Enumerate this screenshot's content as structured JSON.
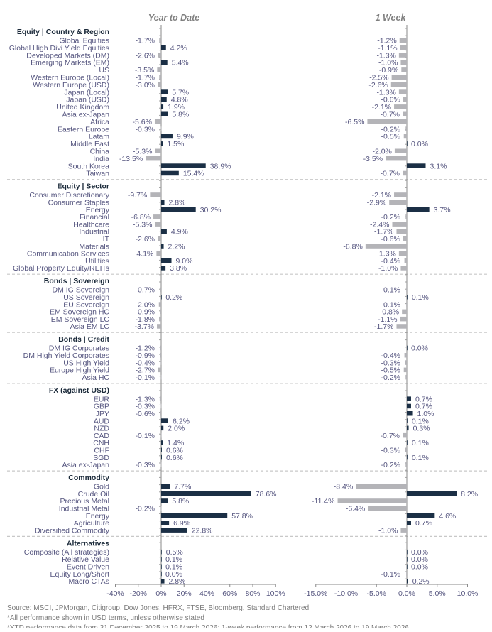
{
  "chart_data": {
    "type": "bar",
    "orientation": "horizontal",
    "panels": [
      {
        "title": "Year to Date",
        "key": "ytd",
        "xlim": [
          -40,
          100
        ],
        "ticks": [
          -40,
          -20,
          0,
          20,
          40,
          60,
          80,
          100
        ],
        "tick_format": "%d%"
      },
      {
        "title": "1 Week",
        "key": "w1",
        "xlim": [
          -15,
          10
        ],
        "ticks": [
          -15,
          -10,
          -5,
          0,
          5,
          10
        ],
        "tick_format": "%.1f%"
      }
    ],
    "colors": {
      "positive": "#1b2f45",
      "negative": "#b4b4b8",
      "text": "#55557f",
      "header": "#1b2a3a"
    },
    "sections": [
      {
        "title": "Equity | Country & Region",
        "items": [
          {
            "label": "Global Equities",
            "ytd": -1.7,
            "w1": -1.2
          },
          {
            "label": "Global High Divi Yield Equities",
            "ytd": 4.2,
            "w1": -1.1
          },
          {
            "label": "Developed Markets (DM)",
            "ytd": -2.6,
            "w1": -1.3
          },
          {
            "label": "Emerging Markets (EM)",
            "ytd": 5.4,
            "w1": -1.0
          },
          {
            "label": "US",
            "ytd": -3.5,
            "w1": -0.9
          },
          {
            "label": "Western Europe (Local)",
            "ytd": -1.7,
            "w1": -2.5
          },
          {
            "label": "Western Europe (USD)",
            "ytd": -3.0,
            "w1": -2.6
          },
          {
            "label": "Japan (Local)",
            "ytd": 5.7,
            "w1": -1.3
          },
          {
            "label": "Japan (USD)",
            "ytd": 4.8,
            "w1": -0.6
          },
          {
            "label": "United Kingdom",
            "ytd": 1.9,
            "w1": -2.1
          },
          {
            "label": "Asia ex-Japan",
            "ytd": 5.8,
            "w1": -0.7
          },
          {
            "label": "Africa",
            "ytd": -5.6,
            "w1": -6.5
          },
          {
            "label": "Eastern Europe",
            "ytd": -0.3,
            "w1": -0.2
          },
          {
            "label": "Latam",
            "ytd": 9.9,
            "w1": -0.5
          },
          {
            "label": "Middle East",
            "ytd": 1.5,
            "w1": 0.0
          },
          {
            "label": "China",
            "ytd": -5.3,
            "w1": -2.0
          },
          {
            "label": "India",
            "ytd": -13.5,
            "w1": -3.5
          },
          {
            "label": "South Korea",
            "ytd": 38.9,
            "w1": 3.1
          },
          {
            "label": "Taiwan",
            "ytd": 15.4,
            "w1": -0.7
          }
        ]
      },
      {
        "title": "Equity | Sector",
        "items": [
          {
            "label": "Consumer Discretionary",
            "ytd": -9.7,
            "w1": -2.1
          },
          {
            "label": "Consumer Staples",
            "ytd": 2.8,
            "w1": -2.9
          },
          {
            "label": "Energy",
            "ytd": 30.2,
            "w1": 3.7
          },
          {
            "label": "Financial",
            "ytd": -6.8,
            "w1": -0.2
          },
          {
            "label": "Healthcare",
            "ytd": -5.3,
            "w1": -2.4
          },
          {
            "label": "Industrial",
            "ytd": 4.9,
            "w1": -1.7
          },
          {
            "label": "IT",
            "ytd": -2.6,
            "w1": -0.6
          },
          {
            "label": "Materials",
            "ytd": 2.2,
            "w1": -6.8
          },
          {
            "label": "Communication Services",
            "ytd": -4.1,
            "w1": -1.3
          },
          {
            "label": "Utilities",
            "ytd": 9.0,
            "w1": -0.4
          },
          {
            "label": "Global Property Equity/REITs",
            "ytd": 3.8,
            "w1": -1.0
          }
        ]
      },
      {
        "title": "Bonds | Sovereign",
        "items": [
          {
            "label": "DM IG Sovereign",
            "ytd": -0.7,
            "w1": -0.1
          },
          {
            "label": "US Sovereign",
            "ytd": 0.2,
            "w1": 0.1
          },
          {
            "label": "EU Sovereign",
            "ytd": -2.0,
            "w1": -0.1
          },
          {
            "label": "EM Sovereign HC",
            "ytd": -0.9,
            "w1": -0.8
          },
          {
            "label": "EM Sovereign LC",
            "ytd": -1.8,
            "w1": -1.1
          },
          {
            "label": "Asia EM LC",
            "ytd": -3.7,
            "w1": -1.7
          }
        ]
      },
      {
        "title": "Bonds | Credit",
        "items": [
          {
            "label": "DM IG Corporates",
            "ytd": -1.2,
            "w1": 0.0
          },
          {
            "label": "DM High Yield Corporates",
            "ytd": -0.9,
            "w1": -0.4
          },
          {
            "label": "US High Yield",
            "ytd": -0.4,
            "w1": -0.3
          },
          {
            "label": "Europe High Yield",
            "ytd": -2.7,
            "w1": -0.5
          },
          {
            "label": "Asia HC",
            "ytd": -0.1,
            "w1": -0.2
          }
        ]
      },
      {
        "title": "FX (against USD)",
        "items": [
          {
            "label": "EUR",
            "ytd": -1.3,
            "w1": 0.7
          },
          {
            "label": "GBP",
            "ytd": -0.3,
            "w1": 0.7
          },
          {
            "label": "JPY",
            "ytd": -0.6,
            "w1": 1.0
          },
          {
            "label": "AUD",
            "ytd": 6.2,
            "w1": 0.1
          },
          {
            "label": "NZD",
            "ytd": 2.0,
            "w1": 0.3
          },
          {
            "label": "CAD",
            "ytd": -0.1,
            "w1": -0.7
          },
          {
            "label": "CNH",
            "ytd": 1.4,
            "w1": 0.1
          },
          {
            "label": "CHF",
            "ytd": 0.6,
            "w1": -0.3
          },
          {
            "label": "SGD",
            "ytd": 0.6,
            "w1": 0.1
          },
          {
            "label": "Asia ex-Japan",
            "ytd": -0.3,
            "w1": -0.2
          }
        ]
      },
      {
        "title": "Commodity",
        "items": [
          {
            "label": "Gold",
            "ytd": 7.7,
            "w1": -8.4
          },
          {
            "label": "Crude Oil",
            "ytd": 78.6,
            "w1": 8.2
          },
          {
            "label": "Precious Metal",
            "ytd": 5.8,
            "w1": -11.4
          },
          {
            "label": "Industrial Metal",
            "ytd": -0.2,
            "w1": -6.4
          },
          {
            "label": "Energy",
            "ytd": 57.8,
            "w1": 4.6
          },
          {
            "label": "Agriculture",
            "ytd": 6.9,
            "w1": 0.7
          },
          {
            "label": "Diversified Commodity",
            "ytd": 22.8,
            "w1": -1.0
          }
        ]
      },
      {
        "title": "Alternatives",
        "items": [
          {
            "label": "Composite (All strategies)",
            "ytd": 0.5,
            "w1": 0.0
          },
          {
            "label": "Relative Value",
            "ytd": 0.1,
            "w1": 0.0
          },
          {
            "label": "Event Driven",
            "ytd": 0.1,
            "w1": 0.0
          },
          {
            "label": "Equity Long/Short",
            "ytd": 0.0,
            "w1": -0.1
          },
          {
            "label": "Macro CTAs",
            "ytd": 2.8,
            "w1": 0.2
          }
        ]
      }
    ]
  },
  "footnotes": [
    "Source: MSCI, JPMorgan, Citigroup, Dow Jones, HFRX, FTSE, Bloomberg, Standard Chartered",
    "*All performance shown in USD terms, unless otherwise stated",
    "*YTD performance data from 31 December 2025 to 19 March 2026; 1-week performance from 12 March 2026 to 19 March 2026"
  ]
}
